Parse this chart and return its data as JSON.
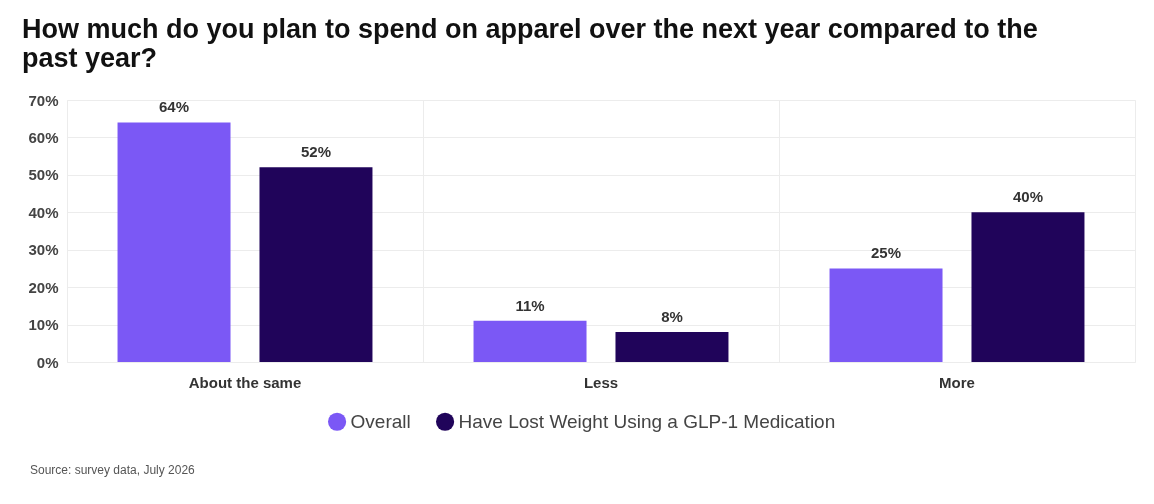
{
  "chart_data": {
    "type": "bar",
    "title": "How much do you plan to spend on apparel over the next year compared to the past year?",
    "categories": [
      "About the same",
      "Less",
      "More"
    ],
    "series": [
      {
        "name": "Overall",
        "color": "#7b58f5",
        "values": [
          64,
          11,
          25
        ],
        "value_labels": [
          "64%",
          "11%",
          "25%"
        ]
      },
      {
        "name": "Have Lost Weight Using a GLP-1 Medication",
        "color": "#20045a",
        "values": [
          52,
          8,
          40
        ],
        "value_labels": [
          "52%",
          "8%",
          "40%"
        ]
      }
    ],
    "ylim": [
      0,
      70
    ],
    "yticks": [
      {
        "value": 0,
        "label": "0%"
      },
      {
        "value": 10,
        "label": "10%"
      },
      {
        "value": 20,
        "label": "20%"
      },
      {
        "value": 30,
        "label": "30%"
      },
      {
        "value": 40,
        "label": "40%"
      },
      {
        "value": 50,
        "label": "50%"
      },
      {
        "value": 60,
        "label": "60%"
      },
      {
        "value": 70,
        "label": "70%"
      }
    ],
    "grid": true,
    "legend": "bottom",
    "annotations": [
      "Source: survey data, July 2026"
    ]
  }
}
